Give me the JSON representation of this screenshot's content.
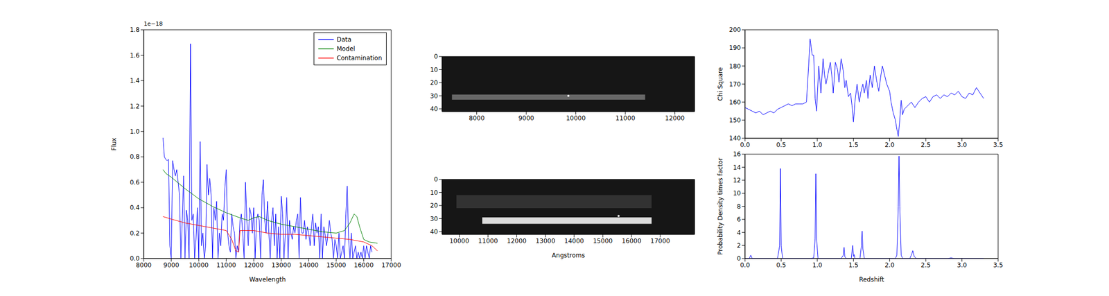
{
  "chart_data": [
    {
      "type": "line",
      "x_label": "Wavelength",
      "y_label": "Flux",
      "y_offset_text": "1e−18",
      "legend": "upper right",
      "xlim": [
        8000,
        17000
      ],
      "xticks": [
        8000,
        9000,
        10000,
        11000,
        12000,
        13000,
        14000,
        15000,
        16000,
        17000
      ],
      "ylim": [
        0,
        1.8
      ],
      "yticks": [
        {
          "value": 0,
          "label": "0.0"
        },
        0.2,
        0.4,
        0.6,
        0.8,
        {
          "value": 1,
          "label": "1.0"
        },
        1.2,
        1.4,
        1.6,
        1.8
      ],
      "series": [
        {
          "name": "Data",
          "color": "#0000ff",
          "x": [
            8700,
            8750,
            8800,
            8850,
            8900,
            8950,
            9000,
            9050,
            9100,
            9150,
            9200,
            9250,
            9300,
            9350,
            9400,
            9450,
            9500,
            9550,
            9600,
            9650,
            9700,
            9750,
            9800,
            9850,
            9900,
            9950,
            10000,
            10050,
            10100,
            10150,
            10200,
            10250,
            10300,
            10350,
            10400,
            10450,
            10500,
            10550,
            10600,
            10650,
            10700,
            10750,
            10800,
            10850,
            10900,
            10950,
            11000,
            11050,
            11100,
            11150,
            11200,
            11250,
            11300,
            11350,
            11400,
            11450,
            11500,
            11550,
            11600,
            11650,
            11700,
            11750,
            11800,
            11850,
            11900,
            11950,
            12000,
            12050,
            12100,
            12150,
            12200,
            12250,
            12300,
            12350,
            12400,
            12450,
            12500,
            12550,
            12600,
            12650,
            12700,
            12750,
            12800,
            12850,
            12900,
            12950,
            13000,
            13050,
            13100,
            13150,
            13200,
            13250,
            13300,
            13350,
            13400,
            13450,
            13500,
            13550,
            13600,
            13650,
            13700,
            13750,
            13800,
            13850,
            13900,
            13950,
            14000,
            14050,
            14100,
            14150,
            14200,
            14250,
            14300,
            14350,
            14400,
            14450,
            14500,
            14550,
            14600,
            14650,
            14700,
            14750,
            14800,
            14850,
            14900,
            14950,
            15000,
            15050,
            15100,
            15150,
            15200,
            15250,
            15300,
            15350,
            15400,
            15450,
            15500,
            15550,
            15600,
            15650,
            15700,
            15750,
            15800,
            15850,
            15900,
            15950,
            16000,
            16050,
            16100,
            16150,
            16200,
            16250,
            16300
          ],
          "values": [
            0.95,
            0.8,
            0.78,
            0.77,
            0.78,
            0.1,
            0.0,
            0.77,
            0.7,
            0.65,
            0.7,
            0.6,
            0.5,
            0.0,
            0.3,
            0.65,
            0.0,
            0.38,
            0.3,
            0.0,
            1.69,
            0.3,
            0.35,
            0.0,
            0.15,
            0.4,
            0.0,
            0.92,
            0.1,
            0.2,
            0.0,
            0.1,
            0.74,
            0.5,
            0.63,
            0.5,
            0.0,
            0.4,
            0.3,
            0.45,
            0.0,
            0.2,
            0.1,
            0.35,
            0.3,
            0.55,
            0.7,
            0.2,
            0.1,
            0.05,
            0.35,
            0.25,
            0.2,
            0.0,
            0.1,
            0.05,
            0.3,
            0.35,
            0.2,
            0.0,
            0.6,
            0.3,
            0.1,
            0.4,
            0.35,
            0.2,
            0.4,
            0.0,
            0.3,
            0.35,
            0.3,
            0.0,
            0.5,
            0.62,
            0.3,
            0.2,
            0.45,
            0.2,
            0.0,
            0.3,
            0.4,
            0.1,
            0.35,
            0.0,
            0.25,
            0.0,
            0.49,
            0.35,
            0.0,
            0.2,
            0.48,
            0.0,
            0.3,
            0.2,
            0.15,
            0.25,
            0.2,
            0.3,
            0.35,
            0.0,
            0.48,
            0.2,
            0.2,
            0.3,
            0.15,
            0.25,
            0.2,
            0.1,
            0.25,
            0.35,
            0.1,
            0.28,
            0.2,
            0.25,
            0.0,
            0.35,
            0.0,
            0.25,
            0.18,
            0.1,
            0.2,
            0.3,
            0.2,
            0.15,
            0.0,
            0.15,
            0.1,
            0.0,
            0.2,
            0.0,
            0.05,
            0.1,
            0.0,
            0.35,
            0.57,
            0.15,
            0.0,
            0.2,
            0.0,
            0.05,
            0.1,
            0.0,
            0.05,
            0.0,
            0.05,
            0.0,
            0.1,
            0.0,
            0.1,
            0.05,
            0.0,
            0.1,
            0.05
          ]
        },
        {
          "name": "Model",
          "color": "#008000",
          "x": [
            8700,
            8800,
            9000,
            9500,
            10000,
            10500,
            11000,
            11500,
            11800,
            12000,
            12200,
            12500,
            13000,
            13500,
            14000,
            14500,
            15000,
            15300,
            15500,
            15650,
            15750,
            15850,
            16000,
            16200,
            16500
          ],
          "values": [
            0.7,
            0.67,
            0.64,
            0.55,
            0.47,
            0.41,
            0.36,
            0.32,
            0.3,
            0.32,
            0.33,
            0.3,
            0.27,
            0.25,
            0.23,
            0.21,
            0.2,
            0.22,
            0.28,
            0.35,
            0.33,
            0.25,
            0.15,
            0.13,
            0.12
          ]
        },
        {
          "name": "Contamination",
          "color": "#ff0000",
          "x": [
            8700,
            9000,
            9500,
            10000,
            10500,
            11000,
            11200,
            11350,
            11450,
            11500,
            12000,
            12500,
            13000,
            13500,
            14000,
            14500,
            15000,
            15500,
            16000,
            16300,
            16500
          ],
          "values": [
            0.33,
            0.31,
            0.28,
            0.26,
            0.24,
            0.22,
            0.15,
            0.06,
            0.05,
            0.22,
            0.22,
            0.2,
            0.19,
            0.19,
            0.18,
            0.17,
            0.16,
            0.15,
            0.13,
            0.1,
            0.06
          ]
        }
      ]
    },
    {
      "type": "image",
      "xlim": [
        7300,
        12400
      ],
      "xticks": [
        8000,
        9000,
        10000,
        11000,
        12000
      ],
      "ylim": [
        42,
        0
      ],
      "yticks": [
        0,
        10,
        20,
        30,
        40
      ],
      "traces": [
        {
          "x": [
            7500,
            11400
          ],
          "y": [
            29,
            33
          ],
          "brightness": 0.35
        }
      ],
      "spots": [
        {
          "x": 9850,
          "y": 30
        }
      ]
    },
    {
      "type": "image",
      "x_label": "Angstroms",
      "xlim": [
        9400,
        18200
      ],
      "xticks": [
        10000,
        11000,
        12000,
        13000,
        14000,
        15000,
        16000,
        17000
      ],
      "ylim": [
        42,
        0
      ],
      "yticks": [
        0,
        10,
        20,
        30,
        40
      ],
      "traces": [
        {
          "x": [
            9900,
            16700
          ],
          "y": [
            12,
            22
          ],
          "brightness": 0.12
        },
        {
          "x": [
            10800,
            16700
          ],
          "y": [
            29,
            34
          ],
          "brightness": 0.85
        }
      ],
      "spots": [
        {
          "x": 15550,
          "y": 28
        }
      ]
    },
    {
      "type": "line",
      "y_label": "Chi Square",
      "xlim": [
        0,
        3.5
      ],
      "xticks": [
        {
          "value": 0,
          "label": "0.0"
        },
        0.5,
        {
          "value": 1,
          "label": "1.0"
        },
        1.5,
        {
          "value": 2,
          "label": "2.0"
        },
        2.5,
        {
          "value": 3,
          "label": "3.0"
        },
        3.5
      ],
      "ylim": [
        140,
        200
      ],
      "yticks": [
        140,
        150,
        160,
        170,
        180,
        190,
        200
      ],
      "series": [
        {
          "color": "#0000ff",
          "x": [
            0,
            0.05,
            0.1,
            0.15,
            0.2,
            0.25,
            0.3,
            0.35,
            0.4,
            0.45,
            0.5,
            0.55,
            0.6,
            0.65,
            0.7,
            0.75,
            0.8,
            0.85,
            0.88,
            0.9,
            0.93,
            0.95,
            0.97,
            0.99,
            1.02,
            1.05,
            1.08,
            1.1,
            1.12,
            1.15,
            1.18,
            1.2,
            1.22,
            1.25,
            1.28,
            1.3,
            1.33,
            1.36,
            1.38,
            1.4,
            1.43,
            1.46,
            1.48,
            1.5,
            1.52,
            1.55,
            1.58,
            1.6,
            1.63,
            1.65,
            1.68,
            1.7,
            1.73,
            1.76,
            1.79,
            1.82,
            1.85,
            1.88,
            1.9,
            1.93,
            1.96,
            2.0,
            2.02,
            2.05,
            2.08,
            2.1,
            2.12,
            2.14,
            2.16,
            2.18,
            2.2,
            2.25,
            2.3,
            2.35,
            2.4,
            2.45,
            2.5,
            2.55,
            2.6,
            2.65,
            2.7,
            2.75,
            2.8,
            2.85,
            2.9,
            2.95,
            3.0,
            3.05,
            3.1,
            3.15,
            3.2,
            3.25,
            3.3
          ],
          "values": [
            157,
            156,
            155,
            154,
            155,
            153,
            154,
            155,
            154,
            156,
            157,
            158,
            159,
            158,
            159,
            159,
            159,
            160,
            180,
            195,
            186,
            186,
            162,
            155,
            180,
            165,
            184,
            175,
            170,
            176,
            182,
            175,
            165,
            182,
            178,
            171,
            184,
            177,
            168,
            172,
            163,
            165,
            158,
            149,
            160,
            170,
            160,
            165,
            170,
            165,
            172,
            162,
            175,
            168,
            180,
            172,
            166,
            175,
            180,
            175,
            170,
            166,
            160,
            154,
            150,
            145,
            141,
            150,
            161,
            153,
            156,
            158,
            160,
            157,
            160,
            162,
            163,
            160,
            163,
            164,
            162,
            164,
            163,
            165,
            164,
            166,
            163,
            162,
            165,
            164,
            168,
            165,
            162
          ]
        }
      ]
    },
    {
      "type": "line",
      "x_label": "Redshift",
      "y_label": "Probability Density times factor",
      "xlim": [
        0,
        3.5
      ],
      "xticks": [
        {
          "value": 0,
          "label": "0.0"
        },
        0.5,
        {
          "value": 1,
          "label": "1.0"
        },
        1.5,
        {
          "value": 2,
          "label": "2.0"
        },
        2.5,
        {
          "value": 3,
          "label": "3.0"
        },
        3.5
      ],
      "ylim": [
        0,
        16
      ],
      "yticks": [
        0,
        2,
        4,
        6,
        8,
        10,
        12,
        14,
        16
      ],
      "series": [
        {
          "color": "#0000ff",
          "x": [
            0,
            0.06,
            0.08,
            0.1,
            0.45,
            0.48,
            0.49,
            0.5,
            0.52,
            0.9,
            0.95,
            0.97,
            0.98,
            0.99,
            1.01,
            1.33,
            1.36,
            1.37,
            1.38,
            1.4,
            1.47,
            1.49,
            1.5,
            1.51,
            1.52,
            1.59,
            1.61,
            1.62,
            1.63,
            1.65,
            2.08,
            2.1,
            2.12,
            2.13,
            2.14,
            2.16,
            2.18,
            2.28,
            2.31,
            2.32,
            2.34,
            2.37,
            2.8,
            2.85,
            2.9,
            3.3
          ],
          "values": [
            0,
            0,
            0.5,
            0,
            0,
            2,
            13.8,
            2,
            0,
            0,
            0.1,
            3,
            13,
            3,
            0,
            0,
            0.5,
            1.7,
            0.3,
            0,
            0,
            2.0,
            0.3,
            0.6,
            0,
            0,
            2,
            4.2,
            1.5,
            0,
            0,
            0.5,
            8,
            15.7,
            8,
            0.5,
            0,
            0,
            0.8,
            1.2,
            0.3,
            0,
            0,
            0.1,
            0,
            0
          ]
        }
      ]
    }
  ]
}
